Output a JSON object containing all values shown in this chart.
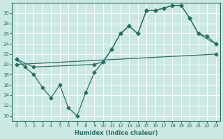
{
  "line1_x": [
    0,
    1,
    2,
    3,
    4,
    5,
    6,
    7,
    8,
    9,
    10,
    11,
    12,
    13,
    14,
    15,
    16,
    17,
    18,
    19,
    20,
    21,
    22,
    23
  ],
  "line1_y": [
    21,
    19.5,
    18,
    15.5,
    13.5,
    16,
    11.5,
    10,
    14.5,
    18.5,
    20.5,
    23,
    26,
    27.5,
    26,
    30.5,
    30.5,
    31,
    31.5,
    31.5,
    29,
    26,
    25.5,
    24
  ],
  "line2_x": [
    0,
    2,
    9,
    10,
    11,
    12,
    13,
    14,
    15,
    16,
    17,
    18,
    19,
    20,
    21,
    23
  ],
  "line2_y": [
    21,
    19.5,
    20,
    20.5,
    23,
    26,
    27.5,
    26,
    30.5,
    30.5,
    31,
    31.5,
    31.5,
    29,
    26,
    24
  ],
  "line3_x": [
    0,
    23
  ],
  "line3_y": [
    20,
    22
  ],
  "color": "#2e6e62",
  "bg_color": "#cce8e5",
  "grid_color": "#b0d5d2",
  "xlabel": "Humidex (Indice chaleur)",
  "xlim": [
    -0.5,
    23.5
  ],
  "ylim": [
    9,
    32
  ],
  "yticks": [
    10,
    12,
    14,
    16,
    18,
    20,
    22,
    24,
    26,
    28,
    30
  ],
  "xticks": [
    0,
    1,
    2,
    3,
    4,
    5,
    6,
    7,
    8,
    9,
    10,
    11,
    12,
    13,
    14,
    15,
    16,
    17,
    18,
    19,
    20,
    21,
    22,
    23
  ]
}
